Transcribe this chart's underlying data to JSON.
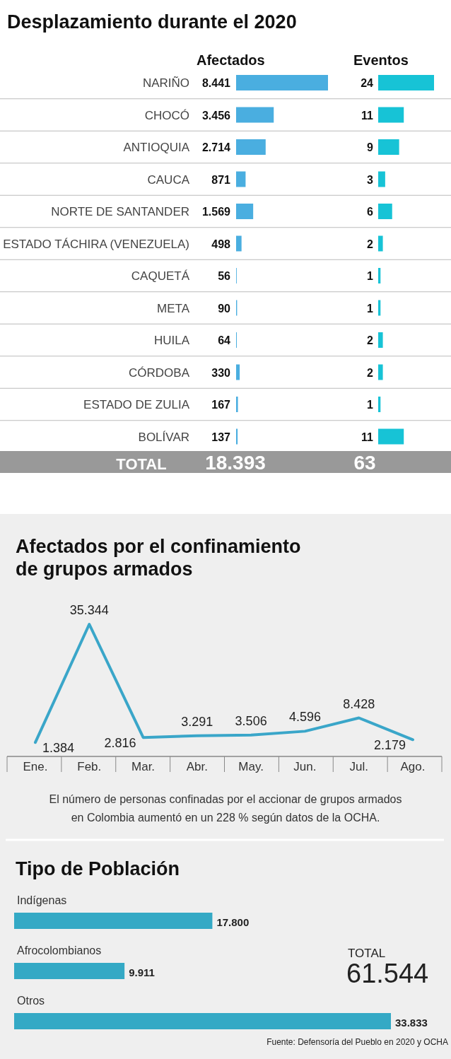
{
  "chart_data": [
    {
      "type": "bar",
      "orientation": "horizontal",
      "title": "Desplazamiento durante el 2020",
      "tick_labels": "y",
      "categories": [
        "NARIÑO",
        "CHOCÓ",
        "ANTIOQUIA",
        "CAUCA",
        "NORTE DE SANTANDER",
        "ESTADO TÁCHIRA (VENEZUELA)",
        "CAQUETÁ",
        "META",
        "HUILA",
        "CÓRDOBA",
        "ESTADO DE ZULIA",
        "BOLÍVAR"
      ],
      "series": [
        {
          "name": "Afectados",
          "color": "#4aaee0",
          "values": [
            8441,
            3456,
            2714,
            871,
            1569,
            498,
            56,
            90,
            64,
            330,
            167,
            137
          ],
          "value_labels": [
            "8.441",
            "3.456",
            "2.714",
            "871",
            "1.569",
            "498",
            "56",
            "90",
            "64",
            "330",
            "167",
            "137"
          ]
        }
      ],
      "annotations": [
        "TOTAL",
        "18.393"
      ]
    },
    {
      "type": "bar",
      "orientation": "horizontal",
      "data_labels": true,
      "categories": [
        null,
        null,
        null,
        null,
        null,
        null,
        null,
        null,
        null,
        null,
        null,
        null
      ],
      "series": [
        {
          "name": "Eventos",
          "color": "#17c3d6",
          "values": [
            24,
            11,
            9,
            3,
            6,
            2,
            1,
            1,
            2,
            2,
            1,
            11
          ]
        }
      ],
      "annotations": [
        "63"
      ]
    },
    {
      "type": "line",
      "title": "Afectados por el confinamiento de grupos armados",
      "categories": [
        "Ene.",
        "Feb.",
        "Mar.",
        "Abr.",
        "May.",
        "Jun.",
        "Jul.",
        "Ago."
      ],
      "series": [
        {
          "color": "#3aa6c9",
          "values": [
            1384,
            35344,
            2816,
            3291,
            3506,
            4596,
            8428,
            2179
          ],
          "value_labels": [
            "1.384",
            "35.344",
            "2.816",
            "3.291",
            "3.506",
            "4.596",
            "8.428",
            "2.179"
          ]
        }
      ],
      "annotations": [
        "El número de personas confinadas por el accionar de grupos armados en Colombia aumentó en un 228 % según datos de la OCHA."
      ]
    },
    {
      "type": "bar",
      "orientation": "horizontal",
      "title": "Tipo de Población",
      "categories": [
        "Indígenas",
        "Afrocolombianos",
        "Otros"
      ],
      "series": [
        {
          "color": "#34a9c5",
          "values": [
            17800,
            9911,
            33833
          ],
          "value_labels": [
            "17.800",
            "9.911",
            "33.833"
          ]
        }
      ],
      "annotations": [
        "TOTAL",
        "61.544",
        "Fuente: Defensoría del Pueblo en 2020 y OCHA"
      ]
    }
  ]
}
